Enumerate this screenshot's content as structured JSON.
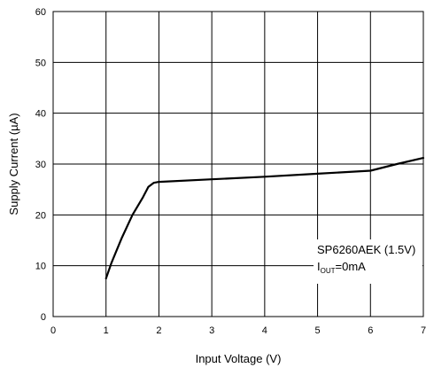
{
  "chart_data": {
    "type": "line",
    "xlabel": "Input Voltage (V)",
    "ylabel": "Supply Current (µA)",
    "xlim": [
      0,
      7
    ],
    "ylim": [
      0,
      60
    ],
    "xticks": [
      "0",
      "1",
      "2",
      "3",
      "4",
      "5",
      "6",
      "7"
    ],
    "yticks": [
      "0",
      "10",
      "20",
      "30",
      "40",
      "50",
      "60"
    ],
    "grid": true,
    "series": [
      {
        "x": [
          1.0,
          1.1,
          1.3,
          1.5,
          1.7,
          1.8,
          1.9,
          2.0,
          3.0,
          4.0,
          5.0,
          6.0,
          6.5,
          7.0
        ],
        "y": [
          7.5,
          10.5,
          15.5,
          20.0,
          23.5,
          25.5,
          26.3,
          26.5,
          27.0,
          27.5,
          28.1,
          28.7,
          30.0,
          31.2
        ]
      }
    ],
    "annotation": {
      "line1": "SP6260AEK (1.5V)",
      "sub_prefix": "I",
      "sub_text": "OUT",
      "sub_suffix": "=0mA"
    },
    "colors": {
      "line": "#000000",
      "grid": "#000000"
    }
  }
}
